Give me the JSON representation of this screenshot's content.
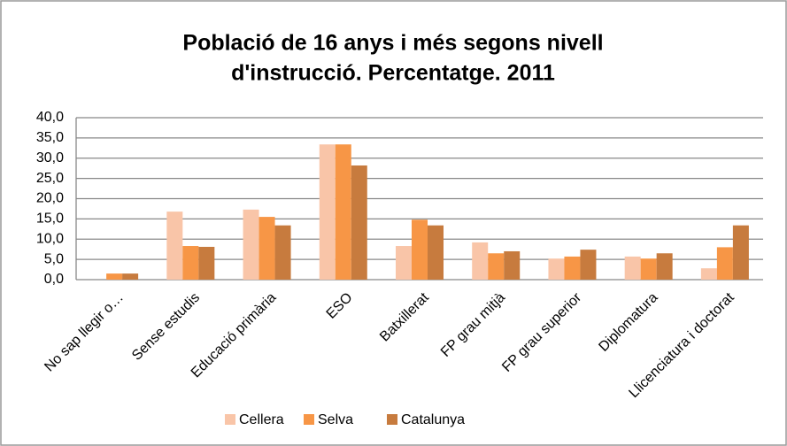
{
  "chart_data": {
    "type": "bar",
    "title": [
      "Població de 16 anys i més segons nivell",
      "d'instrucció. Percentatge. 2011"
    ],
    "categories": [
      "No sap llegir o…",
      "Sense estudis",
      "Educació primària",
      "ESO",
      "Batxillerat",
      "FP grau mitjà",
      "FP grau superior",
      "Diplomatura",
      "Llicenciatura i doctorat"
    ],
    "series": [
      {
        "name": "Cellera",
        "color": "#f9c5a8",
        "values": [
          0,
          16.8,
          17.3,
          33.4,
          8.3,
          9.2,
          5.2,
          5.7,
          2.8
        ]
      },
      {
        "name": "Selva",
        "color": "#f79646",
        "values": [
          1.5,
          8.3,
          15.5,
          33.4,
          14.8,
          6.5,
          5.7,
          5.2,
          8.0
        ]
      },
      {
        "name": "Catalunya",
        "color": "#c77b3e",
        "values": [
          1.5,
          8.1,
          13.4,
          28.2,
          13.4,
          7.0,
          7.4,
          6.5,
          13.4
        ]
      }
    ],
    "ylim": [
      0,
      40
    ],
    "yticks": [
      {
        "value": 0,
        "label": "0,0"
      },
      {
        "value": 5,
        "label": "5,0"
      },
      {
        "value": 10,
        "label": "10,0"
      },
      {
        "value": 15,
        "label": "15,0"
      },
      {
        "value": 20,
        "label": "20,0"
      },
      {
        "value": 25,
        "label": "25,0"
      },
      {
        "value": 30,
        "label": "30,0"
      },
      {
        "value": 35,
        "label": "35,0"
      },
      {
        "value": 40,
        "label": "40,0"
      }
    ],
    "grid": true,
    "legend": "bottom"
  }
}
